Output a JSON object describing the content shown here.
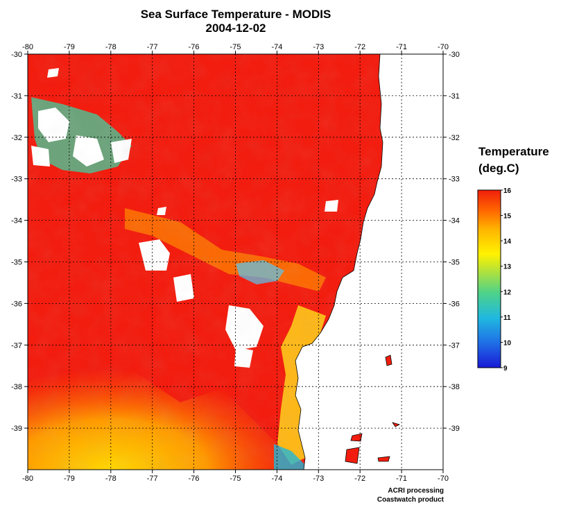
{
  "title": {
    "line1": "Sea Surface Temperature - MODIS",
    "line2": "2004-12-02"
  },
  "map": {
    "lon_ticks": [
      "-80",
      "-79",
      "-78",
      "-77",
      "-76",
      "-75",
      "-74",
      "-73",
      "-72",
      "-71",
      "-70"
    ],
    "lat_ticks": [
      "-30",
      "-31",
      "-32",
      "-33",
      "-34",
      "-35",
      "-36",
      "-37",
      "-38",
      "-39"
    ],
    "lon_range": [
      -80,
      -70
    ],
    "lat_range": [
      -40,
      -30
    ],
    "grid": "dotted"
  },
  "colorbar": {
    "title_line1": "Temperature",
    "title_line2": "(deg.C)",
    "ticks": [
      "16",
      "15",
      "14",
      "13",
      "12",
      "11",
      "10",
      "9"
    ],
    "range": [
      9,
      16
    ],
    "colors": [
      "#1a1ad6",
      "#1f6fe6",
      "#20b8e0",
      "#4ed28a",
      "#c8e62a",
      "#fff200",
      "#ffb400",
      "#ff6a00",
      "#f01e0a"
    ]
  },
  "colors": {
    "warm": "#f21d0f",
    "land": "#ffffff",
    "no_data": "#ffffff"
  },
  "credits": {
    "line1": "ACRI processing",
    "line2": "Coastwatch product"
  }
}
